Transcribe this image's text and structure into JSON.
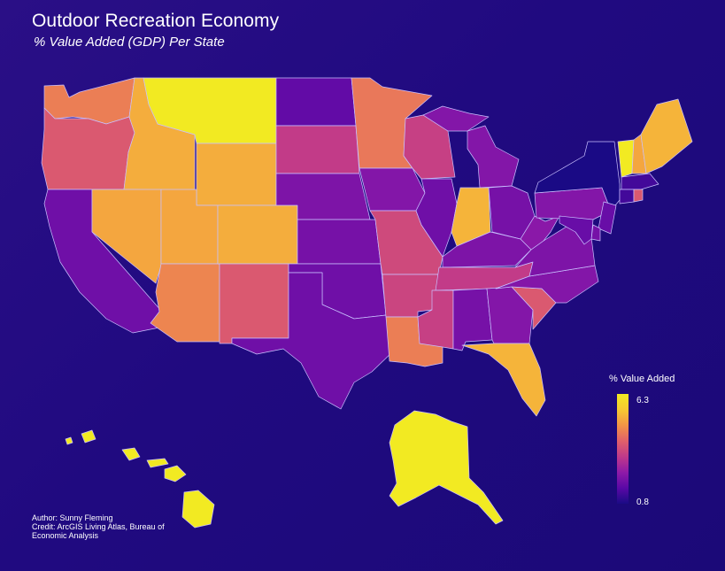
{
  "header": {
    "title": "Outdoor Recreation Economy",
    "subtitle": "% Value Added (GDP) Per State"
  },
  "legend": {
    "title": "% Value Added",
    "max_label": "6.3",
    "min_label": "0.8",
    "min_value": 0.8,
    "max_value": 6.3,
    "colors": [
      "#1a0a85",
      "#5a08a6",
      "#8f1aa8",
      "#c0398a",
      "#e0606a",
      "#f39446",
      "#f6c932",
      "#f2ea22"
    ]
  },
  "credits": {
    "author": "Author: Sunny Fleming",
    "credit": "Credit: ArcGIS Living Atlas, Bureau of Economic Analysis"
  },
  "map_data": {
    "states": [
      {
        "id": "WA",
        "value": 4.4
      },
      {
        "id": "OR",
        "value": 3.8
      },
      {
        "id": "CA",
        "value": 1.9
      },
      {
        "id": "ID",
        "value": 5.1
      },
      {
        "id": "NV",
        "value": 5.0
      },
      {
        "id": "MT",
        "value": 6.3
      },
      {
        "id": "WY",
        "value": 5.1
      },
      {
        "id": "UT",
        "value": 5.0
      },
      {
        "id": "AZ",
        "value": 4.5
      },
      {
        "id": "CO",
        "value": 5.1
      },
      {
        "id": "NM",
        "value": 3.8
      },
      {
        "id": "ND",
        "value": 1.7
      },
      {
        "id": "SD",
        "value": 3.2
      },
      {
        "id": "NE",
        "value": 2.1
      },
      {
        "id": "KS",
        "value": 2.0
      },
      {
        "id": "OK",
        "value": 1.9
      },
      {
        "id": "TX",
        "value": 1.9
      },
      {
        "id": "MN",
        "value": 4.3
      },
      {
        "id": "IA",
        "value": 2.2
      },
      {
        "id": "MO",
        "value": 3.5
      },
      {
        "id": "AR",
        "value": 3.4
      },
      {
        "id": "LA",
        "value": 4.4
      },
      {
        "id": "WI",
        "value": 3.3
      },
      {
        "id": "IL",
        "value": 1.9
      },
      {
        "id": "MI",
        "value": 2.2
      },
      {
        "id": "IN",
        "value": 5.2
      },
      {
        "id": "OH",
        "value": 2.0
      },
      {
        "id": "KY",
        "value": 2.1
      },
      {
        "id": "TN",
        "value": 3.2
      },
      {
        "id": "MS",
        "value": 3.3
      },
      {
        "id": "AL",
        "value": 2.0
      },
      {
        "id": "GA",
        "value": 2.2
      },
      {
        "id": "FL",
        "value": 5.2
      },
      {
        "id": "SC",
        "value": 3.8
      },
      {
        "id": "NC",
        "value": 2.2
      },
      {
        "id": "VA",
        "value": 2.1
      },
      {
        "id": "WV",
        "value": 2.3
      },
      {
        "id": "PA",
        "value": 2.2
      },
      {
        "id": "NY",
        "value": 0.8
      },
      {
        "id": "VT",
        "value": 6.3
      },
      {
        "id": "NH",
        "value": 5.0
      },
      {
        "id": "ME",
        "value": 5.2
      },
      {
        "id": "MA",
        "value": 1.3
      },
      {
        "id": "RI",
        "value": 3.8
      },
      {
        "id": "CT",
        "value": 1.3
      },
      {
        "id": "NJ",
        "value": 1.8
      },
      {
        "id": "DE",
        "value": 2.0
      },
      {
        "id": "MD",
        "value": 1.8
      },
      {
        "id": "AK",
        "value": 6.3
      },
      {
        "id": "HI",
        "value": 6.3
      }
    ]
  }
}
